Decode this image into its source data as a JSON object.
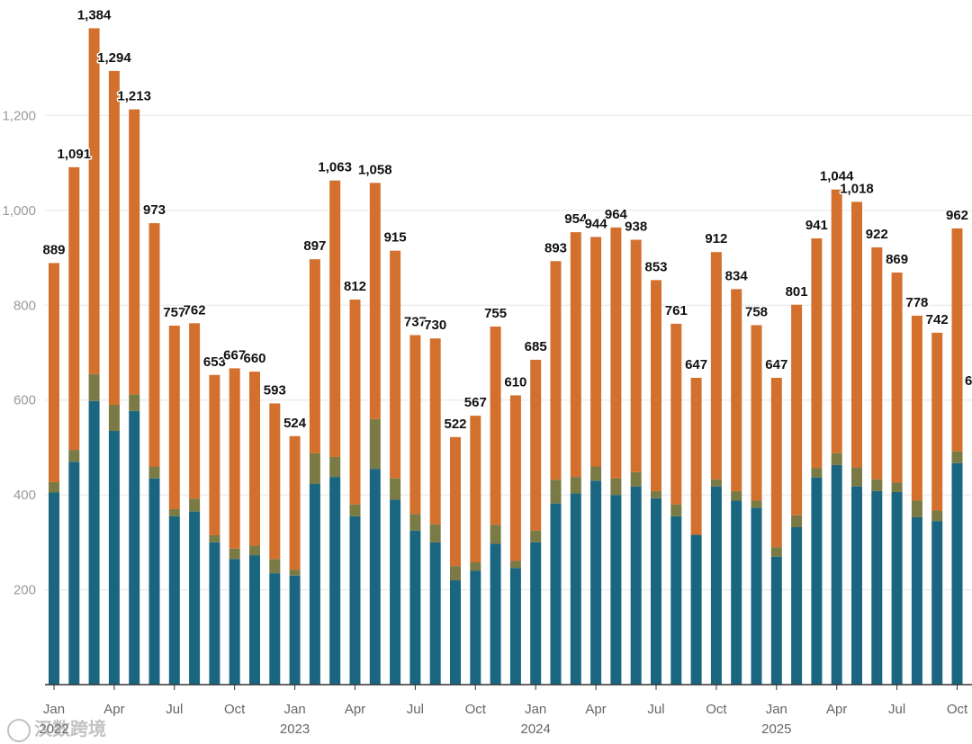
{
  "chart_data": {
    "type": "bar",
    "stacked": true,
    "categories": [
      "2022-01",
      "2022-02",
      "2022-03",
      "2022-04",
      "2022-05",
      "2022-06",
      "2022-07",
      "2022-08",
      "2022-09",
      "2022-10",
      "2022-11",
      "2022-12",
      "2023-01",
      "2023-02",
      "2023-03",
      "2023-04",
      "2023-05",
      "2023-06",
      "2023-07",
      "2023-08",
      "2023-09",
      "2023-10",
      "2023-11",
      "2023-12",
      "2024-01",
      "2024-02",
      "2024-03",
      "2024-04",
      "2024-05",
      "2024-06",
      "2024-07",
      "2024-08",
      "2024-09",
      "2024-10",
      "2024-11",
      "2024-12",
      "2025-01",
      "2025-02",
      "2025-03",
      "2025-04",
      "2025-05",
      "2025-06",
      "2025-07",
      "2025-08",
      "2025-09",
      "2025-10"
    ],
    "totals": [
      889,
      1091,
      1384,
      1294,
      1213,
      973,
      757,
      762,
      653,
      667,
      660,
      593,
      524,
      897,
      1063,
      812,
      1058,
      915,
      737,
      730,
      522,
      567,
      755,
      610,
      685,
      893,
      954,
      944,
      964,
      938,
      853,
      761,
      647,
      912,
      834,
      758,
      647,
      801,
      941,
      1044,
      1018,
      922,
      869,
      778,
      742,
      962
    ],
    "total_labels": [
      "889",
      "1,091",
      "1,384",
      "1,294",
      "1,213",
      "973",
      "757",
      "762",
      "653",
      "667",
      "660",
      "593",
      "524",
      "897",
      "1,063",
      "812",
      "1,058",
      "915",
      "737",
      "730",
      "522",
      "567",
      "755",
      "610",
      "685",
      "893",
      "954",
      "944",
      "964",
      "938",
      "853",
      "761",
      "647",
      "912",
      "834",
      "758",
      "647",
      "801",
      "941",
      "1,044",
      "1,018",
      "922",
      "869",
      "778",
      "742",
      "962"
    ],
    "series": [
      {
        "color": "#1a6680",
        "values": [
          405,
          470,
          598,
          535,
          577,
          435,
          355,
          365,
          300,
          265,
          273,
          235,
          230,
          423,
          438,
          355,
          455,
          390,
          325,
          300,
          220,
          240,
          297,
          246,
          300,
          382,
          403,
          430,
          400,
          418,
          393,
          355,
          316,
          418,
          388,
          373,
          270,
          332,
          437,
          463,
          418,
          408,
          406,
          353,
          345,
          467
        ]
      },
      {
        "color": "#7a7a45",
        "values": [
          22,
          25,
          57,
          55,
          35,
          25,
          15,
          27,
          15,
          22,
          20,
          30,
          12,
          65,
          42,
          25,
          105,
          45,
          35,
          38,
          30,
          18,
          40,
          15,
          25,
          50,
          35,
          30,
          35,
          30,
          15,
          25,
          0,
          15,
          20,
          15,
          20,
          25,
          20,
          25,
          40,
          25,
          20,
          35,
          22,
          25
        ]
      },
      {
        "color": "#d4702e",
        "values": [
          462,
          596,
          729,
          704,
          601,
          513,
          387,
          370,
          338,
          380,
          367,
          328,
          282,
          409,
          583,
          432,
          498,
          480,
          377,
          392,
          272,
          309,
          418,
          349,
          360,
          461,
          516,
          484,
          529,
          490,
          445,
          381,
          331,
          479,
          426,
          370,
          357,
          444,
          484,
          556,
          560,
          489,
          443,
          390,
          375,
          470
        ]
      }
    ],
    "yticks": [
      {
        "value": 200,
        "label": "200"
      },
      {
        "value": 400,
        "label": "400"
      },
      {
        "value": 600,
        "label": "600"
      },
      {
        "value": 800,
        "label": "800"
      },
      {
        "value": 1000,
        "label": "1,000"
      },
      {
        "value": 1200,
        "label": "1,200"
      }
    ],
    "ylim": [
      0,
      1400
    ],
    "xticks": [
      {
        "index": 0,
        "label": "Jan",
        "year": "2022"
      },
      {
        "index": 3,
        "label": "Apr"
      },
      {
        "index": 6,
        "label": "Jul"
      },
      {
        "index": 9,
        "label": "Oct"
      },
      {
        "index": 12,
        "label": "Jan",
        "year": "2023"
      },
      {
        "index": 15,
        "label": "Apr"
      },
      {
        "index": 18,
        "label": "Jul"
      },
      {
        "index": 21,
        "label": "Oct"
      },
      {
        "index": 24,
        "label": "Jan",
        "year": "2024"
      },
      {
        "index": 27,
        "label": "Apr"
      },
      {
        "index": 30,
        "label": "Jul"
      },
      {
        "index": 33,
        "label": "Oct"
      },
      {
        "index": 36,
        "label": "Jan",
        "year": "2025"
      },
      {
        "index": 39,
        "label": "Apr"
      },
      {
        "index": 42,
        "label": "Jul"
      },
      {
        "index": 45,
        "label": "Oct"
      }
    ],
    "side_label": "6",
    "grid": true,
    "title": "",
    "xlabel": "",
    "ylabel": ""
  },
  "watermark": {
    "text": "汉数跨境",
    "icon": "watermark-logo-icon"
  }
}
